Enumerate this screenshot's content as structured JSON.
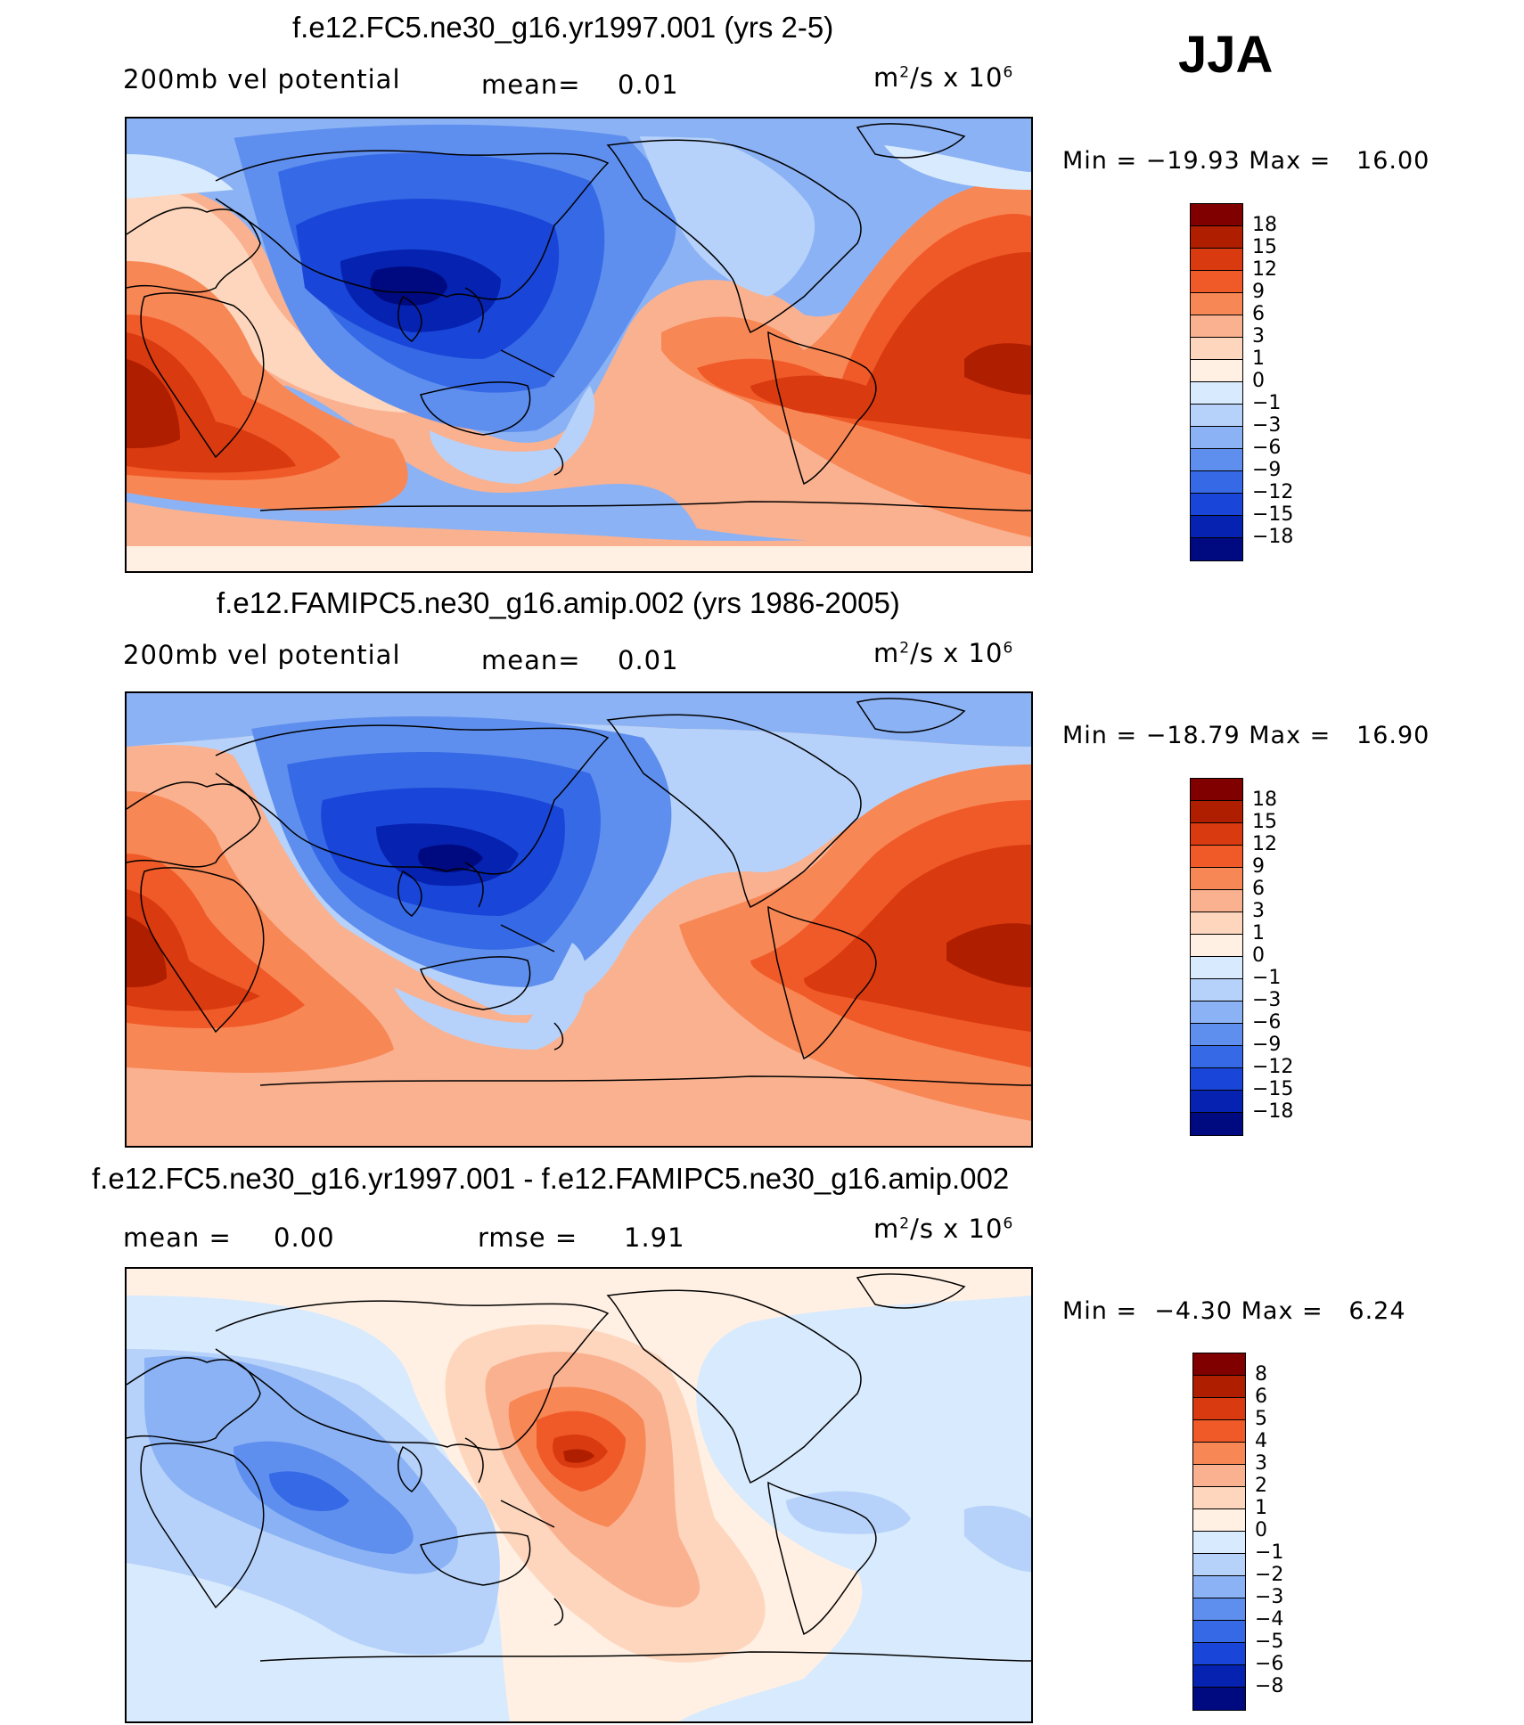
{
  "season": "JJA",
  "palette": {
    "18": "#800000",
    "15": "#b01e00",
    "12": "#d93a10",
    "9": "#f05a28",
    "6": "#f88756",
    "3": "#fab190",
    "1": "#fdd6bd",
    "0": "#fff0e3",
    "-1": "#d8eafd",
    "-3": "#b6d2fa",
    "-6": "#8bb2f4",
    "-9": "#5f8fee",
    "-12": "#3669e6",
    "-15": "#1946d8",
    "-18": "#0622b0",
    "-21": "#000a80"
  },
  "panels": [
    {
      "title": "f.e12.FC5.ne30_g16.yr1997.001 (yrs 2-5)",
      "left_label": "200mb vel potential",
      "mean_label": "mean=",
      "mean_value": "0.01",
      "units_base": "m",
      "units_exp": "2",
      "units_mid": "/s x 10",
      "units_pow": "6",
      "min_label": "Min =",
      "min_value": "−19.93",
      "max_label": "Max =",
      "max_value": "16.00",
      "colorbar": {
        "ticks": [
          "18",
          "15",
          "12",
          "9",
          "6",
          "3",
          "1",
          "0",
          "−1",
          "−3",
          "−6",
          "−9",
          "−12",
          "−15",
          "−18"
        ],
        "colors": [
          "#800000",
          "#b01e00",
          "#d93a10",
          "#f05a28",
          "#f88756",
          "#fab190",
          "#fdd6bd",
          "#fff0e3",
          "#d8eafd",
          "#b6d2fa",
          "#8bb2f4",
          "#5f8fee",
          "#3669e6",
          "#1946d8",
          "#0622b0",
          "#000a80"
        ]
      }
    },
    {
      "title": "f.e12.FAMIPC5.ne30_g16.amip.002 (yrs 1986-2005)",
      "left_label": "200mb vel potential",
      "mean_label": "mean=",
      "mean_value": "0.01",
      "units_base": "m",
      "units_exp": "2",
      "units_mid": "/s x 10",
      "units_pow": "6",
      "min_label": "Min =",
      "min_value": "−18.79",
      "max_label": "Max =",
      "max_value": "16.90",
      "colorbar": {
        "ticks": [
          "18",
          "15",
          "12",
          "9",
          "6",
          "3",
          "1",
          "0",
          "−1",
          "−3",
          "−6",
          "−9",
          "−12",
          "−15",
          "−18"
        ],
        "colors": [
          "#800000",
          "#b01e00",
          "#d93a10",
          "#f05a28",
          "#f88756",
          "#fab190",
          "#fdd6bd",
          "#fff0e3",
          "#d8eafd",
          "#b6d2fa",
          "#8bb2f4",
          "#5f8fee",
          "#3669e6",
          "#1946d8",
          "#0622b0",
          "#000a80"
        ]
      }
    },
    {
      "title": "f.e12.FC5.ne30_g16.yr1997.001 - f.e12.FAMIPC5.ne30_g16.amip.002",
      "left_label": "mean =",
      "left_value": "0.00",
      "mean_label": "rmse =",
      "mean_value": "1.91",
      "units_base": "m",
      "units_exp": "2",
      "units_mid": "/s x 10",
      "units_pow": "6",
      "min_label": "Min =",
      "min_value": "−4.30",
      "max_label": "Max =",
      "max_value": "6.24",
      "colorbar": {
        "ticks": [
          "8",
          "6",
          "5",
          "4",
          "3",
          "2",
          "1",
          "0",
          "−1",
          "−2",
          "−3",
          "−4",
          "−5",
          "−6",
          "−8"
        ],
        "colors": [
          "#800000",
          "#b01e00",
          "#d93a10",
          "#f05a28",
          "#f88756",
          "#fab190",
          "#fdd6bd",
          "#fff0e3",
          "#d8eafd",
          "#b6d2fa",
          "#8bb2f4",
          "#5f8fee",
          "#3669e6",
          "#1946d8",
          "#0622b0",
          "#000a80"
        ]
      }
    }
  ]
}
